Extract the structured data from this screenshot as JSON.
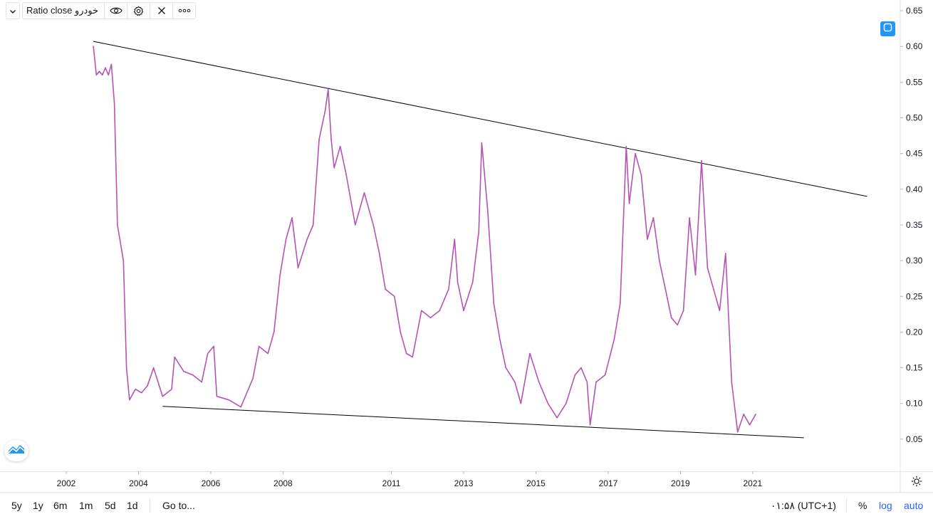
{
  "legend": {
    "title": "Ratio close خودرو",
    "icons": [
      "chevron-down-icon",
      "eye-icon",
      "gear-icon",
      "close-icon",
      "more-icon"
    ]
  },
  "colors": {
    "series": "#b553b5",
    "trendline": "#000000",
    "axis_text": "#131722",
    "border": "#e0e3eb",
    "accent": "#2196f3",
    "link": "#2962ff"
  },
  "bottom_bar": {
    "ranges": [
      "5y",
      "1y",
      "6m",
      "1m",
      "5d",
      "1d"
    ],
    "goto": "Go to...",
    "time": "۰۱:۵۸ (UTC+1)",
    "percent": "%",
    "log": "log",
    "auto": "auto"
  },
  "chart_data": {
    "type": "line",
    "title": "",
    "xlabel": "",
    "ylabel": "",
    "x_ticks": [
      "2002",
      "2004",
      "2006",
      "2008",
      "2011",
      "2013",
      "2015",
      "2017",
      "2019",
      "2021"
    ],
    "y_ticks": [
      "0.05",
      "0.10",
      "0.15",
      "0.20",
      "0.25",
      "0.30",
      "0.35",
      "0.40",
      "0.45",
      "0.50",
      "0.55",
      "0.60",
      "0.65"
    ],
    "ylim": [
      0.005,
      0.665
    ],
    "xlim": [
      "2000-03",
      "2025-02"
    ],
    "y_scale": "linear",
    "grid": false,
    "series": [
      {
        "values": [
          [
            "2002-10",
            0.6
          ],
          [
            "2002-11",
            0.56
          ],
          [
            "2002-12",
            0.565
          ],
          [
            "2003-01",
            0.56
          ],
          [
            "2003-02",
            0.57
          ],
          [
            "2003-03",
            0.56
          ],
          [
            "2003-04",
            0.575
          ],
          [
            "2003-05",
            0.52
          ],
          [
            "2003-06",
            0.35
          ],
          [
            "2003-08",
            0.3
          ],
          [
            "2003-09",
            0.15
          ],
          [
            "2003-10",
            0.105
          ],
          [
            "2003-12",
            0.12
          ],
          [
            "2004-02",
            0.115
          ],
          [
            "2004-04",
            0.125
          ],
          [
            "2004-06",
            0.15
          ],
          [
            "2004-09",
            0.11
          ],
          [
            "2004-12",
            0.12
          ],
          [
            "2005-01",
            0.165
          ],
          [
            "2005-04",
            0.145
          ],
          [
            "2005-07",
            0.14
          ],
          [
            "2005-10",
            0.13
          ],
          [
            "2005-12",
            0.17
          ],
          [
            "2006-02",
            0.18
          ],
          [
            "2006-03",
            0.11
          ],
          [
            "2006-07",
            0.105
          ],
          [
            "2006-11",
            0.095
          ],
          [
            "2007-03",
            0.135
          ],
          [
            "2007-05",
            0.18
          ],
          [
            "2007-08",
            0.17
          ],
          [
            "2007-10",
            0.2
          ],
          [
            "2007-12",
            0.28
          ],
          [
            "2008-02",
            0.33
          ],
          [
            "2008-04",
            0.36
          ],
          [
            "2008-06",
            0.29
          ],
          [
            "2008-09",
            0.33
          ],
          [
            "2008-11",
            0.35
          ],
          [
            "2009-01",
            0.47
          ],
          [
            "2009-03",
            0.51
          ],
          [
            "2009-04",
            0.54
          ],
          [
            "2009-05",
            0.47
          ],
          [
            "2009-06",
            0.43
          ],
          [
            "2009-08",
            0.46
          ],
          [
            "2009-10",
            0.42
          ],
          [
            "2010-01",
            0.35
          ],
          [
            "2010-04",
            0.395
          ],
          [
            "2010-07",
            0.35
          ],
          [
            "2010-09",
            0.31
          ],
          [
            "2010-11",
            0.26
          ],
          [
            "2011-02",
            0.25
          ],
          [
            "2011-04",
            0.2
          ],
          [
            "2011-06",
            0.17
          ],
          [
            "2011-08",
            0.165
          ],
          [
            "2011-11",
            0.23
          ],
          [
            "2012-02",
            0.22
          ],
          [
            "2012-05",
            0.23
          ],
          [
            "2012-08",
            0.26
          ],
          [
            "2012-10",
            0.33
          ],
          [
            "2012-11",
            0.27
          ],
          [
            "2013-01",
            0.23
          ],
          [
            "2013-04",
            0.27
          ],
          [
            "2013-06",
            0.34
          ],
          [
            "2013-07",
            0.465
          ],
          [
            "2013-09",
            0.37
          ],
          [
            "2013-11",
            0.24
          ],
          [
            "2014-01",
            0.19
          ],
          [
            "2014-03",
            0.15
          ],
          [
            "2014-06",
            0.13
          ],
          [
            "2014-08",
            0.1
          ],
          [
            "2014-11",
            0.17
          ],
          [
            "2015-02",
            0.13
          ],
          [
            "2015-05",
            0.1
          ],
          [
            "2015-08",
            0.08
          ],
          [
            "2015-11",
            0.1
          ],
          [
            "2016-02",
            0.14
          ],
          [
            "2016-04",
            0.15
          ],
          [
            "2016-06",
            0.13
          ],
          [
            "2016-07",
            0.07
          ],
          [
            "2016-09",
            0.13
          ],
          [
            "2016-12",
            0.14
          ],
          [
            "2017-03",
            0.19
          ],
          [
            "2017-05",
            0.24
          ],
          [
            "2017-07",
            0.46
          ],
          [
            "2017-08",
            0.38
          ],
          [
            "2017-10",
            0.45
          ],
          [
            "2017-12",
            0.42
          ],
          [
            "2018-02",
            0.33
          ],
          [
            "2018-04",
            0.36
          ],
          [
            "2018-06",
            0.3
          ],
          [
            "2018-08",
            0.26
          ],
          [
            "2018-10",
            0.22
          ],
          [
            "2018-12",
            0.21
          ],
          [
            "2019-02",
            0.23
          ],
          [
            "2019-04",
            0.36
          ],
          [
            "2019-06",
            0.28
          ],
          [
            "2019-08",
            0.44
          ],
          [
            "2019-10",
            0.29
          ],
          [
            "2019-12",
            0.26
          ],
          [
            "2020-02",
            0.23
          ],
          [
            "2020-04",
            0.31
          ],
          [
            "2020-06",
            0.13
          ],
          [
            "2020-08",
            0.06
          ],
          [
            "2020-10",
            0.085
          ],
          [
            "2020-12",
            0.07
          ],
          [
            "2021-02",
            0.085
          ]
        ]
      }
    ],
    "trendlines": [
      {
        "from": [
          "2002-10",
          0.607
        ],
        "to": [
          "2024-03",
          0.39
        ]
      },
      {
        "from": [
          "2004-09",
          0.096
        ],
        "to": [
          "2022-06",
          0.052
        ]
      }
    ]
  }
}
